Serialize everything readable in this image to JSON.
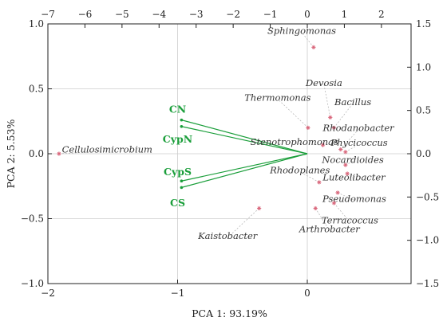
{
  "chart_data": {
    "type": "scatter",
    "subtype": "biplot",
    "xlabel": "PCA 1: 93.19%",
    "ylabel": "PCA 2:  5.53%",
    "bottom_axis": {
      "range": [
        -2,
        0.8
      ],
      "ticks": [
        -2,
        -1,
        0
      ]
    },
    "left_axis": {
      "range": [
        -1.0,
        1.0
      ],
      "ticks": [
        -1.0,
        -0.5,
        0.0,
        0.5,
        1.0
      ]
    },
    "top_axis": {
      "range": [
        -7,
        2.8
      ],
      "ticks": [
        -7,
        -6,
        -5,
        -4,
        -3,
        -2,
        -1,
        0,
        1,
        2
      ]
    },
    "right_axis": {
      "range": [
        -1.5,
        1.5
      ],
      "ticks": [
        -1.5,
        -1.0,
        -0.5,
        0.0,
        0.5,
        1.0,
        1.5
      ]
    },
    "grid": true,
    "colors": {
      "points": "#d9657a",
      "vectors": "#1a9e3a",
      "grid": "#cccccc",
      "leader": "#b0b0b0"
    },
    "points": [
      {
        "name": "Sphingomonas",
        "x": 0.17,
        "y": 1.23,
        "lx": -0.15,
        "ly": 1.42
      },
      {
        "name": "Devosia",
        "x": 0.62,
        "y": 0.42,
        "lx": 0.45,
        "ly": 0.82
      },
      {
        "name": "Thermomonas",
        "x": 0.02,
        "y": 0.3,
        "lx": -0.8,
        "ly": 0.65
      },
      {
        "name": "Bacillus",
        "x": 0.72,
        "y": 0.3,
        "lx": 1.23,
        "ly": 0.6
      },
      {
        "name": "Rhodanobacter",
        "x": 0.9,
        "y": 0.05,
        "lx": 1.38,
        "ly": 0.3
      },
      {
        "name": "Phycicoccus",
        "x": 1.03,
        "y": 0.02,
        "lx": 1.4,
        "ly": 0.13
      },
      {
        "name": "Stenotrophomonas",
        "x": 0.42,
        "y": 0.1,
        "lx": -0.35,
        "ly": 0.14
      },
      {
        "name": "Nocardioides",
        "x": 1.03,
        "y": -0.13,
        "lx": 1.23,
        "ly": -0.07
      },
      {
        "name": "Luteolibacter",
        "x": 1.08,
        "y": -0.23,
        "lx": 1.26,
        "ly": -0.27
      },
      {
        "name": "Rhodoplanes",
        "x": 0.32,
        "y": -0.33,
        "lx": -0.2,
        "ly": -0.19
      },
      {
        "name": "Pseudomonas",
        "x": 0.82,
        "y": -0.45,
        "lx": 1.27,
        "ly": -0.52
      },
      {
        "name": "Terracoccus",
        "x": 0.72,
        "y": -0.57,
        "lx": 1.15,
        "ly": -0.77
      },
      {
        "name": "Arthrobacter",
        "x": 0.22,
        "y": -0.63,
        "lx": 0.6,
        "ly": -0.87
      },
      {
        "name": "Kaistobacter",
        "x": -1.3,
        "y": -0.63,
        "lx": -2.15,
        "ly": -0.95
      },
      {
        "name": "Cellulosimicrobium",
        "x": -6.7,
        "y": 0.0,
        "lx": -5.4,
        "ly": 0.05
      }
    ],
    "vectors": [
      {
        "name": "CN",
        "x": -0.97,
        "y": 0.26,
        "lx": -1.0,
        "ly": 0.34
      },
      {
        "name": "CypN",
        "x": -0.97,
        "y": 0.21,
        "lx": -1.0,
        "ly": 0.11
      },
      {
        "name": "CypS",
        "x": -0.97,
        "y": -0.21,
        "lx": -1.0,
        "ly": -0.14
      },
      {
        "name": "CS",
        "x": -0.97,
        "y": -0.26,
        "lx": -1.0,
        "ly": -0.38
      }
    ]
  }
}
